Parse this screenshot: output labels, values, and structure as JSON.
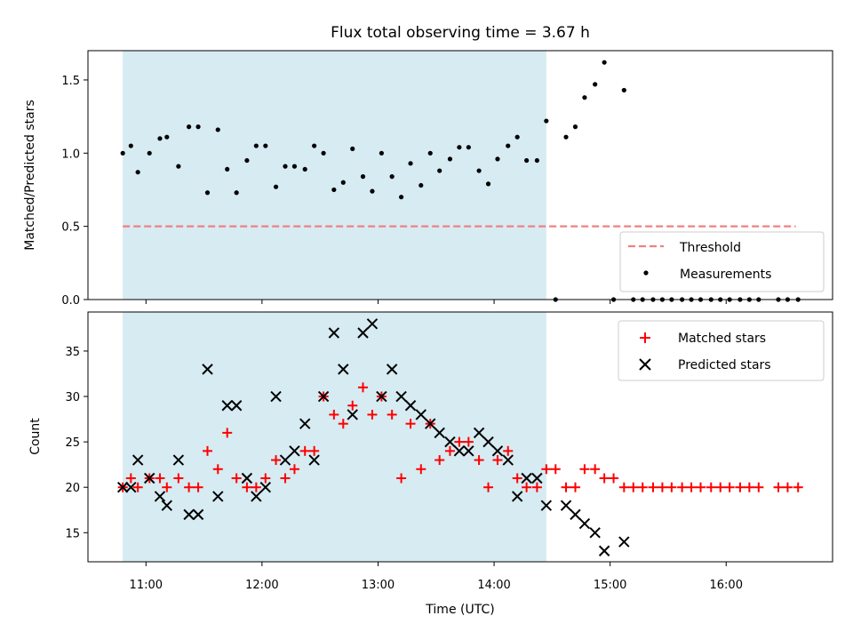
{
  "chart_data": [
    {
      "type": "scatter",
      "title": "Flux total observing time = 3.67 h",
      "xlabel": "",
      "ylabel": "Matched/Predicted stars",
      "xlim": [
        10.5,
        16.917
      ],
      "ylim": [
        0,
        1.7
      ],
      "yticks": [
        0.0,
        0.5,
        1.0,
        1.5
      ],
      "ytick_labels": [
        "0.0",
        "0.5",
        "1.0",
        "1.5"
      ],
      "shaded_region": {
        "x_start": 10.8,
        "x_end": 14.45,
        "color": "#add8e6"
      },
      "threshold": {
        "name": "Threshold",
        "value": 0.5,
        "x_start": 10.8,
        "x_end": 16.6,
        "color": "#f08080"
      },
      "legend": {
        "location": "lower-right",
        "entries": [
          "Threshold",
          "Measurements"
        ]
      },
      "series": [
        {
          "name": "Measurements",
          "marker": "dot",
          "color": "#000000",
          "x": [
            10.8,
            10.87,
            10.93,
            11.03,
            11.12,
            11.18,
            11.28,
            11.37,
            11.45,
            11.53,
            11.62,
            11.7,
            11.78,
            11.87,
            11.95,
            12.03,
            12.12,
            12.2,
            12.28,
            12.37,
            12.45,
            12.53,
            12.62,
            12.7,
            12.78,
            12.87,
            12.95,
            13.03,
            13.12,
            13.2,
            13.28,
            13.37,
            13.45,
            13.53,
            13.62,
            13.7,
            13.78,
            13.87,
            13.95,
            14.03,
            14.12,
            14.2,
            14.28,
            14.37,
            14.45,
            14.53,
            14.62,
            14.7,
            14.78,
            14.87,
            14.95,
            15.03,
            15.12,
            15.2,
            15.28,
            15.37,
            15.45,
            15.53,
            15.62,
            15.7,
            15.78,
            15.87,
            15.95,
            16.03,
            16.12,
            16.2,
            16.28,
            16.45,
            16.53,
            16.62
          ],
          "y": [
            1.0,
            1.05,
            0.87,
            1.0,
            1.1,
            1.11,
            0.91,
            1.18,
            1.18,
            0.73,
            1.16,
            0.89,
            0.73,
            0.95,
            1.05,
            1.05,
            0.77,
            0.91,
            0.91,
            0.89,
            1.05,
            1.0,
            0.75,
            0.8,
            1.03,
            0.84,
            0.74,
            1.0,
            0.84,
            0.7,
            0.93,
            0.78,
            1.0,
            0.88,
            0.96,
            1.04,
            1.04,
            0.88,
            0.79,
            0.96,
            1.05,
            1.11,
            0.95,
            0.95,
            1.22,
            0,
            1.11,
            1.18,
            1.38,
            1.47,
            1.62,
            0,
            1.43,
            0,
            0,
            0,
            0,
            0,
            0,
            0,
            0,
            0,
            0,
            0,
            0,
            0,
            0,
            0,
            0,
            0
          ]
        }
      ]
    },
    {
      "type": "scatter",
      "title": "",
      "xlabel": "Time (UTC)",
      "ylabel": "Count",
      "xlim": [
        10.5,
        16.917
      ],
      "ylim": [
        11.8,
        39.3
      ],
      "xticks": [
        11,
        12,
        13,
        14,
        15,
        16
      ],
      "xtick_labels": [
        "11:00",
        "12:00",
        "13:00",
        "14:00",
        "15:00",
        "16:00"
      ],
      "yticks": [
        15,
        20,
        25,
        30,
        35
      ],
      "ytick_labels": [
        "15",
        "20",
        "25",
        "30",
        "35"
      ],
      "shaded_region": {
        "x_start": 10.8,
        "x_end": 14.45,
        "color": "#add8e6"
      },
      "legend": {
        "location": "top-right",
        "entries": [
          "Matched stars",
          "Predicted stars"
        ]
      },
      "series": [
        {
          "name": "Matched stars",
          "marker": "plus",
          "color": "#ff0000",
          "x": [
            10.8,
            10.87,
            10.93,
            11.03,
            11.12,
            11.18,
            11.28,
            11.37,
            11.45,
            11.53,
            11.62,
            11.7,
            11.78,
            11.87,
            11.95,
            12.03,
            12.12,
            12.2,
            12.28,
            12.37,
            12.45,
            12.53,
            12.62,
            12.7,
            12.78,
            12.87,
            12.95,
            13.03,
            13.12,
            13.2,
            13.28,
            13.37,
            13.45,
            13.53,
            13.62,
            13.7,
            13.78,
            13.87,
            13.95,
            14.03,
            14.12,
            14.2,
            14.28,
            14.37,
            14.45,
            14.53,
            14.62,
            14.7,
            14.78,
            14.87,
            14.95,
            15.03,
            15.12,
            15.2,
            15.28,
            15.37,
            15.45,
            15.53,
            15.62,
            15.7,
            15.78,
            15.87,
            15.95,
            16.03,
            16.12,
            16.2,
            16.28,
            16.45,
            16.53,
            16.62
          ],
          "y": [
            20,
            21,
            20,
            21,
            21,
            20,
            21,
            20,
            20,
            24,
            22,
            26,
            21,
            20,
            20,
            21,
            23,
            21,
            22,
            24,
            24,
            30,
            28,
            27,
            29,
            31,
            28,
            30,
            28,
            21,
            27,
            22,
            27,
            23,
            24,
            25,
            25,
            23,
            20,
            23,
            24,
            21,
            20,
            20,
            22,
            22,
            20,
            20,
            22,
            22,
            21,
            21,
            20,
            20,
            20,
            20,
            20,
            20,
            20,
            20,
            20,
            20,
            20,
            20,
            20,
            20,
            20,
            20,
            20,
            20
          ]
        },
        {
          "name": "Predicted stars",
          "marker": "x",
          "color": "#000000",
          "x": [
            10.8,
            10.87,
            10.93,
            11.03,
            11.12,
            11.18,
            11.28,
            11.37,
            11.45,
            11.53,
            11.62,
            11.7,
            11.78,
            11.87,
            11.95,
            12.03,
            12.12,
            12.2,
            12.28,
            12.37,
            12.45,
            12.53,
            12.62,
            12.7,
            12.78,
            12.87,
            12.95,
            13.03,
            13.12,
            13.2,
            13.28,
            13.37,
            13.45,
            13.53,
            13.62,
            13.7,
            13.78,
            13.87,
            13.95,
            14.03,
            14.12,
            14.2,
            14.28,
            14.37,
            14.45,
            14.62,
            14.7,
            14.78,
            14.87,
            14.95,
            15.12
          ],
          "y": [
            20,
            20,
            23,
            21,
            19,
            18,
            23,
            17,
            17,
            33,
            19,
            29,
            29,
            21,
            19,
            20,
            30,
            23,
            24,
            27,
            23,
            30,
            37,
            33,
            28,
            37,
            38,
            30,
            33,
            30,
            29,
            28,
            27,
            26,
            25,
            24,
            24,
            26,
            25,
            24,
            23,
            19,
            21,
            21,
            18,
            18,
            17,
            16,
            15,
            13,
            14
          ]
        }
      ]
    }
  ]
}
